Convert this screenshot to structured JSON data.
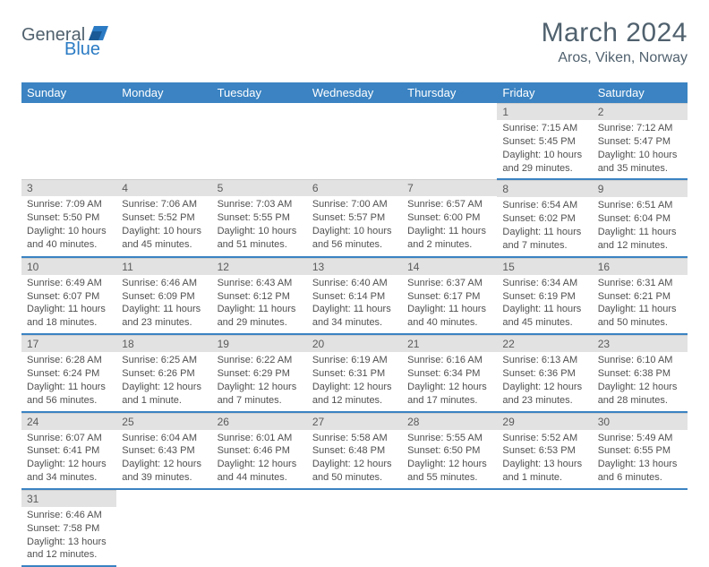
{
  "brand": {
    "part1": "General",
    "part2": "Blue",
    "brand_color": "#2b7bc4",
    "text_color": "#50616e"
  },
  "title": "March 2024",
  "location": "Aros, Viken, Norway",
  "header_bg": "#3b83c2",
  "daynum_bg": "#e2e2e2",
  "weekdays": [
    "Sunday",
    "Monday",
    "Tuesday",
    "Wednesday",
    "Thursday",
    "Friday",
    "Saturday"
  ],
  "weeks": [
    [
      null,
      null,
      null,
      null,
      null,
      {
        "n": "1",
        "sunrise": "Sunrise: 7:15 AM",
        "sunset": "Sunset: 5:45 PM",
        "daylight": "Daylight: 10 hours and 29 minutes."
      },
      {
        "n": "2",
        "sunrise": "Sunrise: 7:12 AM",
        "sunset": "Sunset: 5:47 PM",
        "daylight": "Daylight: 10 hours and 35 minutes."
      }
    ],
    [
      {
        "n": "3",
        "sunrise": "Sunrise: 7:09 AM",
        "sunset": "Sunset: 5:50 PM",
        "daylight": "Daylight: 10 hours and 40 minutes."
      },
      {
        "n": "4",
        "sunrise": "Sunrise: 7:06 AM",
        "sunset": "Sunset: 5:52 PM",
        "daylight": "Daylight: 10 hours and 45 minutes."
      },
      {
        "n": "5",
        "sunrise": "Sunrise: 7:03 AM",
        "sunset": "Sunset: 5:55 PM",
        "daylight": "Daylight: 10 hours and 51 minutes."
      },
      {
        "n": "6",
        "sunrise": "Sunrise: 7:00 AM",
        "sunset": "Sunset: 5:57 PM",
        "daylight": "Daylight: 10 hours and 56 minutes."
      },
      {
        "n": "7",
        "sunrise": "Sunrise: 6:57 AM",
        "sunset": "Sunset: 6:00 PM",
        "daylight": "Daylight: 11 hours and 2 minutes."
      },
      {
        "n": "8",
        "sunrise": "Sunrise: 6:54 AM",
        "sunset": "Sunset: 6:02 PM",
        "daylight": "Daylight: 11 hours and 7 minutes."
      },
      {
        "n": "9",
        "sunrise": "Sunrise: 6:51 AM",
        "sunset": "Sunset: 6:04 PM",
        "daylight": "Daylight: 11 hours and 12 minutes."
      }
    ],
    [
      {
        "n": "10",
        "sunrise": "Sunrise: 6:49 AM",
        "sunset": "Sunset: 6:07 PM",
        "daylight": "Daylight: 11 hours and 18 minutes."
      },
      {
        "n": "11",
        "sunrise": "Sunrise: 6:46 AM",
        "sunset": "Sunset: 6:09 PM",
        "daylight": "Daylight: 11 hours and 23 minutes."
      },
      {
        "n": "12",
        "sunrise": "Sunrise: 6:43 AM",
        "sunset": "Sunset: 6:12 PM",
        "daylight": "Daylight: 11 hours and 29 minutes."
      },
      {
        "n": "13",
        "sunrise": "Sunrise: 6:40 AM",
        "sunset": "Sunset: 6:14 PM",
        "daylight": "Daylight: 11 hours and 34 minutes."
      },
      {
        "n": "14",
        "sunrise": "Sunrise: 6:37 AM",
        "sunset": "Sunset: 6:17 PM",
        "daylight": "Daylight: 11 hours and 40 minutes."
      },
      {
        "n": "15",
        "sunrise": "Sunrise: 6:34 AM",
        "sunset": "Sunset: 6:19 PM",
        "daylight": "Daylight: 11 hours and 45 minutes."
      },
      {
        "n": "16",
        "sunrise": "Sunrise: 6:31 AM",
        "sunset": "Sunset: 6:21 PM",
        "daylight": "Daylight: 11 hours and 50 minutes."
      }
    ],
    [
      {
        "n": "17",
        "sunrise": "Sunrise: 6:28 AM",
        "sunset": "Sunset: 6:24 PM",
        "daylight": "Daylight: 11 hours and 56 minutes."
      },
      {
        "n": "18",
        "sunrise": "Sunrise: 6:25 AM",
        "sunset": "Sunset: 6:26 PM",
        "daylight": "Daylight: 12 hours and 1 minute."
      },
      {
        "n": "19",
        "sunrise": "Sunrise: 6:22 AM",
        "sunset": "Sunset: 6:29 PM",
        "daylight": "Daylight: 12 hours and 7 minutes."
      },
      {
        "n": "20",
        "sunrise": "Sunrise: 6:19 AM",
        "sunset": "Sunset: 6:31 PM",
        "daylight": "Daylight: 12 hours and 12 minutes."
      },
      {
        "n": "21",
        "sunrise": "Sunrise: 6:16 AM",
        "sunset": "Sunset: 6:34 PM",
        "daylight": "Daylight: 12 hours and 17 minutes."
      },
      {
        "n": "22",
        "sunrise": "Sunrise: 6:13 AM",
        "sunset": "Sunset: 6:36 PM",
        "daylight": "Daylight: 12 hours and 23 minutes."
      },
      {
        "n": "23",
        "sunrise": "Sunrise: 6:10 AM",
        "sunset": "Sunset: 6:38 PM",
        "daylight": "Daylight: 12 hours and 28 minutes."
      }
    ],
    [
      {
        "n": "24",
        "sunrise": "Sunrise: 6:07 AM",
        "sunset": "Sunset: 6:41 PM",
        "daylight": "Daylight: 12 hours and 34 minutes."
      },
      {
        "n": "25",
        "sunrise": "Sunrise: 6:04 AM",
        "sunset": "Sunset: 6:43 PM",
        "daylight": "Daylight: 12 hours and 39 minutes."
      },
      {
        "n": "26",
        "sunrise": "Sunrise: 6:01 AM",
        "sunset": "Sunset: 6:46 PM",
        "daylight": "Daylight: 12 hours and 44 minutes."
      },
      {
        "n": "27",
        "sunrise": "Sunrise: 5:58 AM",
        "sunset": "Sunset: 6:48 PM",
        "daylight": "Daylight: 12 hours and 50 minutes."
      },
      {
        "n": "28",
        "sunrise": "Sunrise: 5:55 AM",
        "sunset": "Sunset: 6:50 PM",
        "daylight": "Daylight: 12 hours and 55 minutes."
      },
      {
        "n": "29",
        "sunrise": "Sunrise: 5:52 AM",
        "sunset": "Sunset: 6:53 PM",
        "daylight": "Daylight: 13 hours and 1 minute."
      },
      {
        "n": "30",
        "sunrise": "Sunrise: 5:49 AM",
        "sunset": "Sunset: 6:55 PM",
        "daylight": "Daylight: 13 hours and 6 minutes."
      }
    ],
    [
      {
        "n": "31",
        "sunrise": "Sunrise: 6:46 AM",
        "sunset": "Sunset: 7:58 PM",
        "daylight": "Daylight: 13 hours and 12 minutes."
      },
      null,
      null,
      null,
      null,
      null,
      null
    ]
  ]
}
